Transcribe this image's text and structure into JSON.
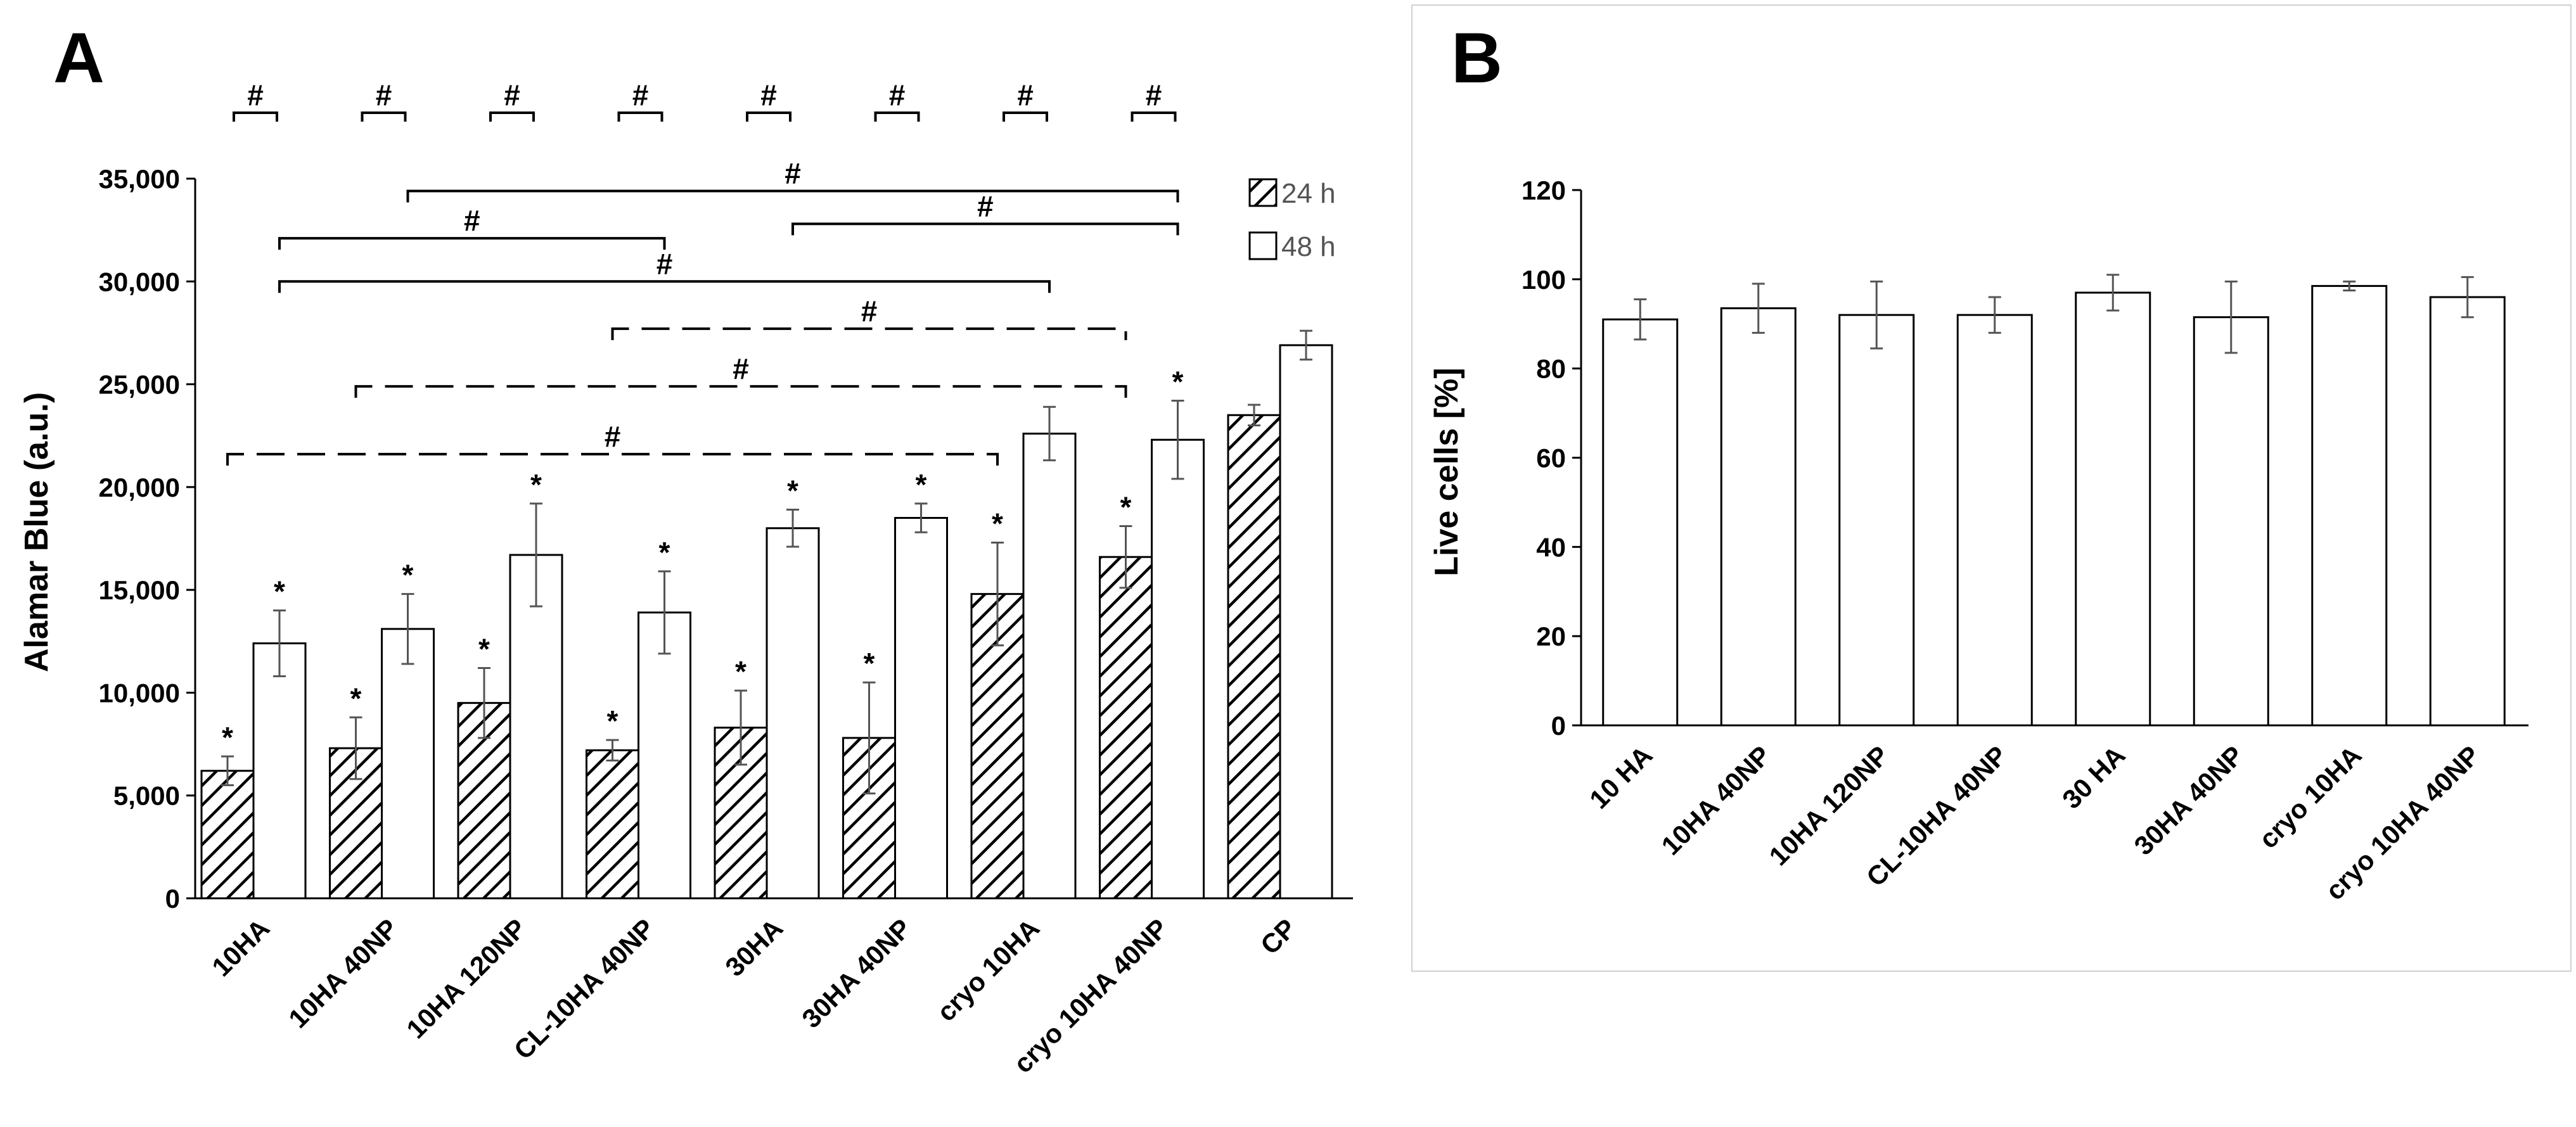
{
  "colors": {
    "bar_24h_stroke": "#000000",
    "bar_48h_fill": "#ffffff",
    "error_bar": "#555555",
    "panel_b_border": "#d0d0d0"
  },
  "chart_data": [
    {
      "panel": "A",
      "type": "bar",
      "ylabel": "Alamar Blue (a.u.)",
      "ylim": [
        0,
        35000
      ],
      "yticks": [
        0,
        5000,
        10000,
        15000,
        20000,
        25000,
        30000,
        35000
      ],
      "ytick_labels": [
        "0",
        "5,000",
        "10,000",
        "15,000",
        "20,000",
        "25,000",
        "30,000",
        "35,000"
      ],
      "categories": [
        "10HA",
        "10HA 40NP",
        "10HA 120NP",
        "CL-10HA 40NP",
        "30HA",
        "30HA 40NP",
        "cryo 10HA",
        "cryo 10HA 40NP",
        "CP"
      ],
      "series": [
        {
          "name": "24 h",
          "pattern": "hatched",
          "values": [
            6200,
            7300,
            9500,
            7200,
            8300,
            7800,
            14800,
            16600,
            23500
          ],
          "errors": [
            700,
            1500,
            1700,
            500,
            1800,
            2700,
            2500,
            1500,
            500
          ],
          "significance": [
            "*",
            "*",
            "*",
            "*",
            "*",
            "*",
            "*",
            "*",
            ""
          ]
        },
        {
          "name": "48 h",
          "pattern": "open",
          "values": [
            12400,
            13100,
            16700,
            13900,
            18000,
            18500,
            22600,
            22300,
            26900
          ],
          "errors": [
            1600,
            1700,
            2500,
            2000,
            900,
            700,
            1300,
            1900,
            700
          ],
          "significance": [
            "*",
            "*",
            "*",
            "*",
            "*",
            "*",
            "",
            "*",
            ""
          ]
        }
      ],
      "pairwise_brackets": [
        {
          "label": "#",
          "from": "10HA"
        },
        {
          "label": "#",
          "from": "10HA 40NP"
        },
        {
          "label": "#",
          "from": "10HA 120NP"
        },
        {
          "label": "#",
          "from": "CL-10HA 40NP"
        },
        {
          "label": "#",
          "from": "30HA"
        },
        {
          "label": "#",
          "from": "30HA 40NP"
        },
        {
          "label": "#",
          "from": "cryo 10HA"
        },
        {
          "label": "#",
          "from": "cryo 10HA 40NP"
        }
      ],
      "comparison_lines": [
        {
          "label": "#",
          "style": "solid",
          "level": 32800,
          "from": {
            "category": "30HA",
            "series": "48 h"
          },
          "to": {
            "category": "cryo 10HA 40NP",
            "series": "48 h"
          }
        },
        {
          "label": "#",
          "style": "solid",
          "level": 34400,
          "from": {
            "category": "10HA 40NP",
            "series": "48 h"
          },
          "to": {
            "category": "cryo 10HA 40NP",
            "series": "48 h"
          }
        },
        {
          "label": "#",
          "style": "solid",
          "level": 32100,
          "from": {
            "category": "10HA",
            "series": "48 h"
          },
          "to": {
            "category": "CL-10HA 40NP",
            "series": "48 h"
          }
        },
        {
          "label": "#",
          "style": "solid",
          "level": 30000,
          "from": {
            "category": "10HA",
            "series": "48 h"
          },
          "to": {
            "category": "cryo 10HA",
            "series": "48 h"
          }
        },
        {
          "label": "#",
          "style": "dashed",
          "level": 27700,
          "from": {
            "category": "CL-10HA 40NP",
            "series": "24 h"
          },
          "to": {
            "category": "cryo 10HA 40NP",
            "series": "24 h"
          }
        },
        {
          "label": "#",
          "style": "dashed",
          "level": 24900,
          "from": {
            "category": "10HA 40NP",
            "series": "24 h"
          },
          "to": {
            "category": "cryo 10HA 40NP",
            "series": "24 h"
          }
        },
        {
          "label": "#",
          "style": "dashed",
          "level": 21600,
          "from": {
            "category": "10HA",
            "series": "24 h"
          },
          "to": {
            "category": "cryo 10HA",
            "series": "24 h"
          }
        }
      ]
    },
    {
      "panel": "B",
      "type": "bar",
      "ylabel": "Live cells [%]",
      "ylim": [
        0,
        120
      ],
      "yticks": [
        0,
        20,
        40,
        60,
        80,
        100,
        120
      ],
      "ytick_labels": [
        "0",
        "20",
        "40",
        "60",
        "80",
        "100",
        "120"
      ],
      "categories": [
        "10 HA",
        "10HA 40NP",
        "10HA 120NP",
        "CL-10HA 40NP",
        "30 HA",
        "30HA 40NP",
        "cryo 10HA",
        "cryo 10HA 40NP"
      ],
      "values": [
        91,
        93.5,
        92,
        92,
        97,
        91.5,
        98.5,
        96
      ],
      "errors": [
        4.5,
        5.5,
        7.5,
        4,
        4,
        8,
        1,
        4.5
      ]
    }
  ]
}
